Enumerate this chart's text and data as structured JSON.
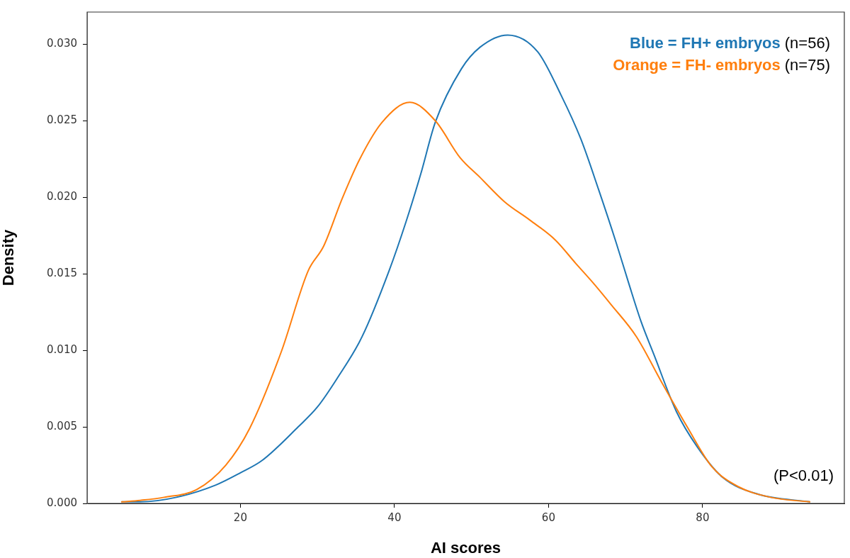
{
  "chart_data": {
    "type": "line",
    "xlabel": "AI scores",
    "ylabel": "Density",
    "xlim": [
      0.1,
      98.4
    ],
    "xticks": [
      20,
      40,
      60,
      80
    ],
    "ylim": [
      0,
      0.0321
    ],
    "yticks": [
      {
        "value": 0,
        "label": "0.000"
      },
      {
        "value": 0.005,
        "label": "0.005"
      },
      {
        "value": 0.01,
        "label": "0.010"
      },
      {
        "value": 0.015,
        "label": "0.015"
      },
      {
        "value": 0.02,
        "label": "0.020"
      },
      {
        "value": 0.025,
        "label": "0.025"
      },
      {
        "value": 0.03,
        "label": "0.030"
      }
    ],
    "marker": "none",
    "line_style": "solid",
    "legend": "top right",
    "annotations": [
      "(n=56)",
      "(n=75)",
      "(P<0.01)"
    ],
    "series": [
      {
        "name": "Blue = FH+ embryos",
        "color": "#1f77b4",
        "x": [
          4.6,
          7,
          11.7,
          16.8,
          20,
          22.8,
          27.5,
          30,
          32.6,
          35.8,
          39.3,
          41.5,
          43.4,
          45.3,
          48.7,
          51.1,
          54.7,
          58.6,
          61.6,
          64.2,
          66.5,
          68.8,
          70.4,
          72,
          73.7,
          76.6,
          79.3,
          82.6,
          87.2,
          93.9
        ],
        "values": [
          0.0001,
          0.0001,
          0.0004,
          0.0012,
          0.002,
          0.0028,
          0.005,
          0.0063,
          0.0082,
          0.0109,
          0.0152,
          0.0184,
          0.0215,
          0.0249,
          0.0284,
          0.0298,
          0.0306,
          0.0295,
          0.0267,
          0.0238,
          0.0205,
          0.017,
          0.0144,
          0.0119,
          0.0097,
          0.006,
          0.0037,
          0.0017,
          0.0006,
          0.0001
        ]
      },
      {
        "name": "Orange = FH- embryos",
        "color": "#ff7f0e",
        "x": [
          4.6,
          7,
          10.1,
          14.3,
          18.1,
          21.2,
          25.3,
          28.8,
          30.8,
          33.2,
          35.5,
          38.4,
          42,
          45.3,
          48.5,
          51.1,
          54.3,
          57.6,
          60.9,
          63.5,
          65.8,
          68.1,
          71.4,
          74.7,
          78,
          81.2,
          84.6,
          88.8,
          93.9
        ],
        "values": [
          0.0001,
          0.0002,
          0.0004,
          0.0009,
          0.0025,
          0.0049,
          0.0099,
          0.0152,
          0.0168,
          0.0199,
          0.0225,
          0.0249,
          0.0262,
          0.025,
          0.0226,
          0.0213,
          0.0197,
          0.0185,
          0.0172,
          0.0157,
          0.0144,
          0.013,
          0.0109,
          0.0079,
          0.005,
          0.0024,
          0.0011,
          0.0004,
          0.0001
        ]
      }
    ]
  }
}
